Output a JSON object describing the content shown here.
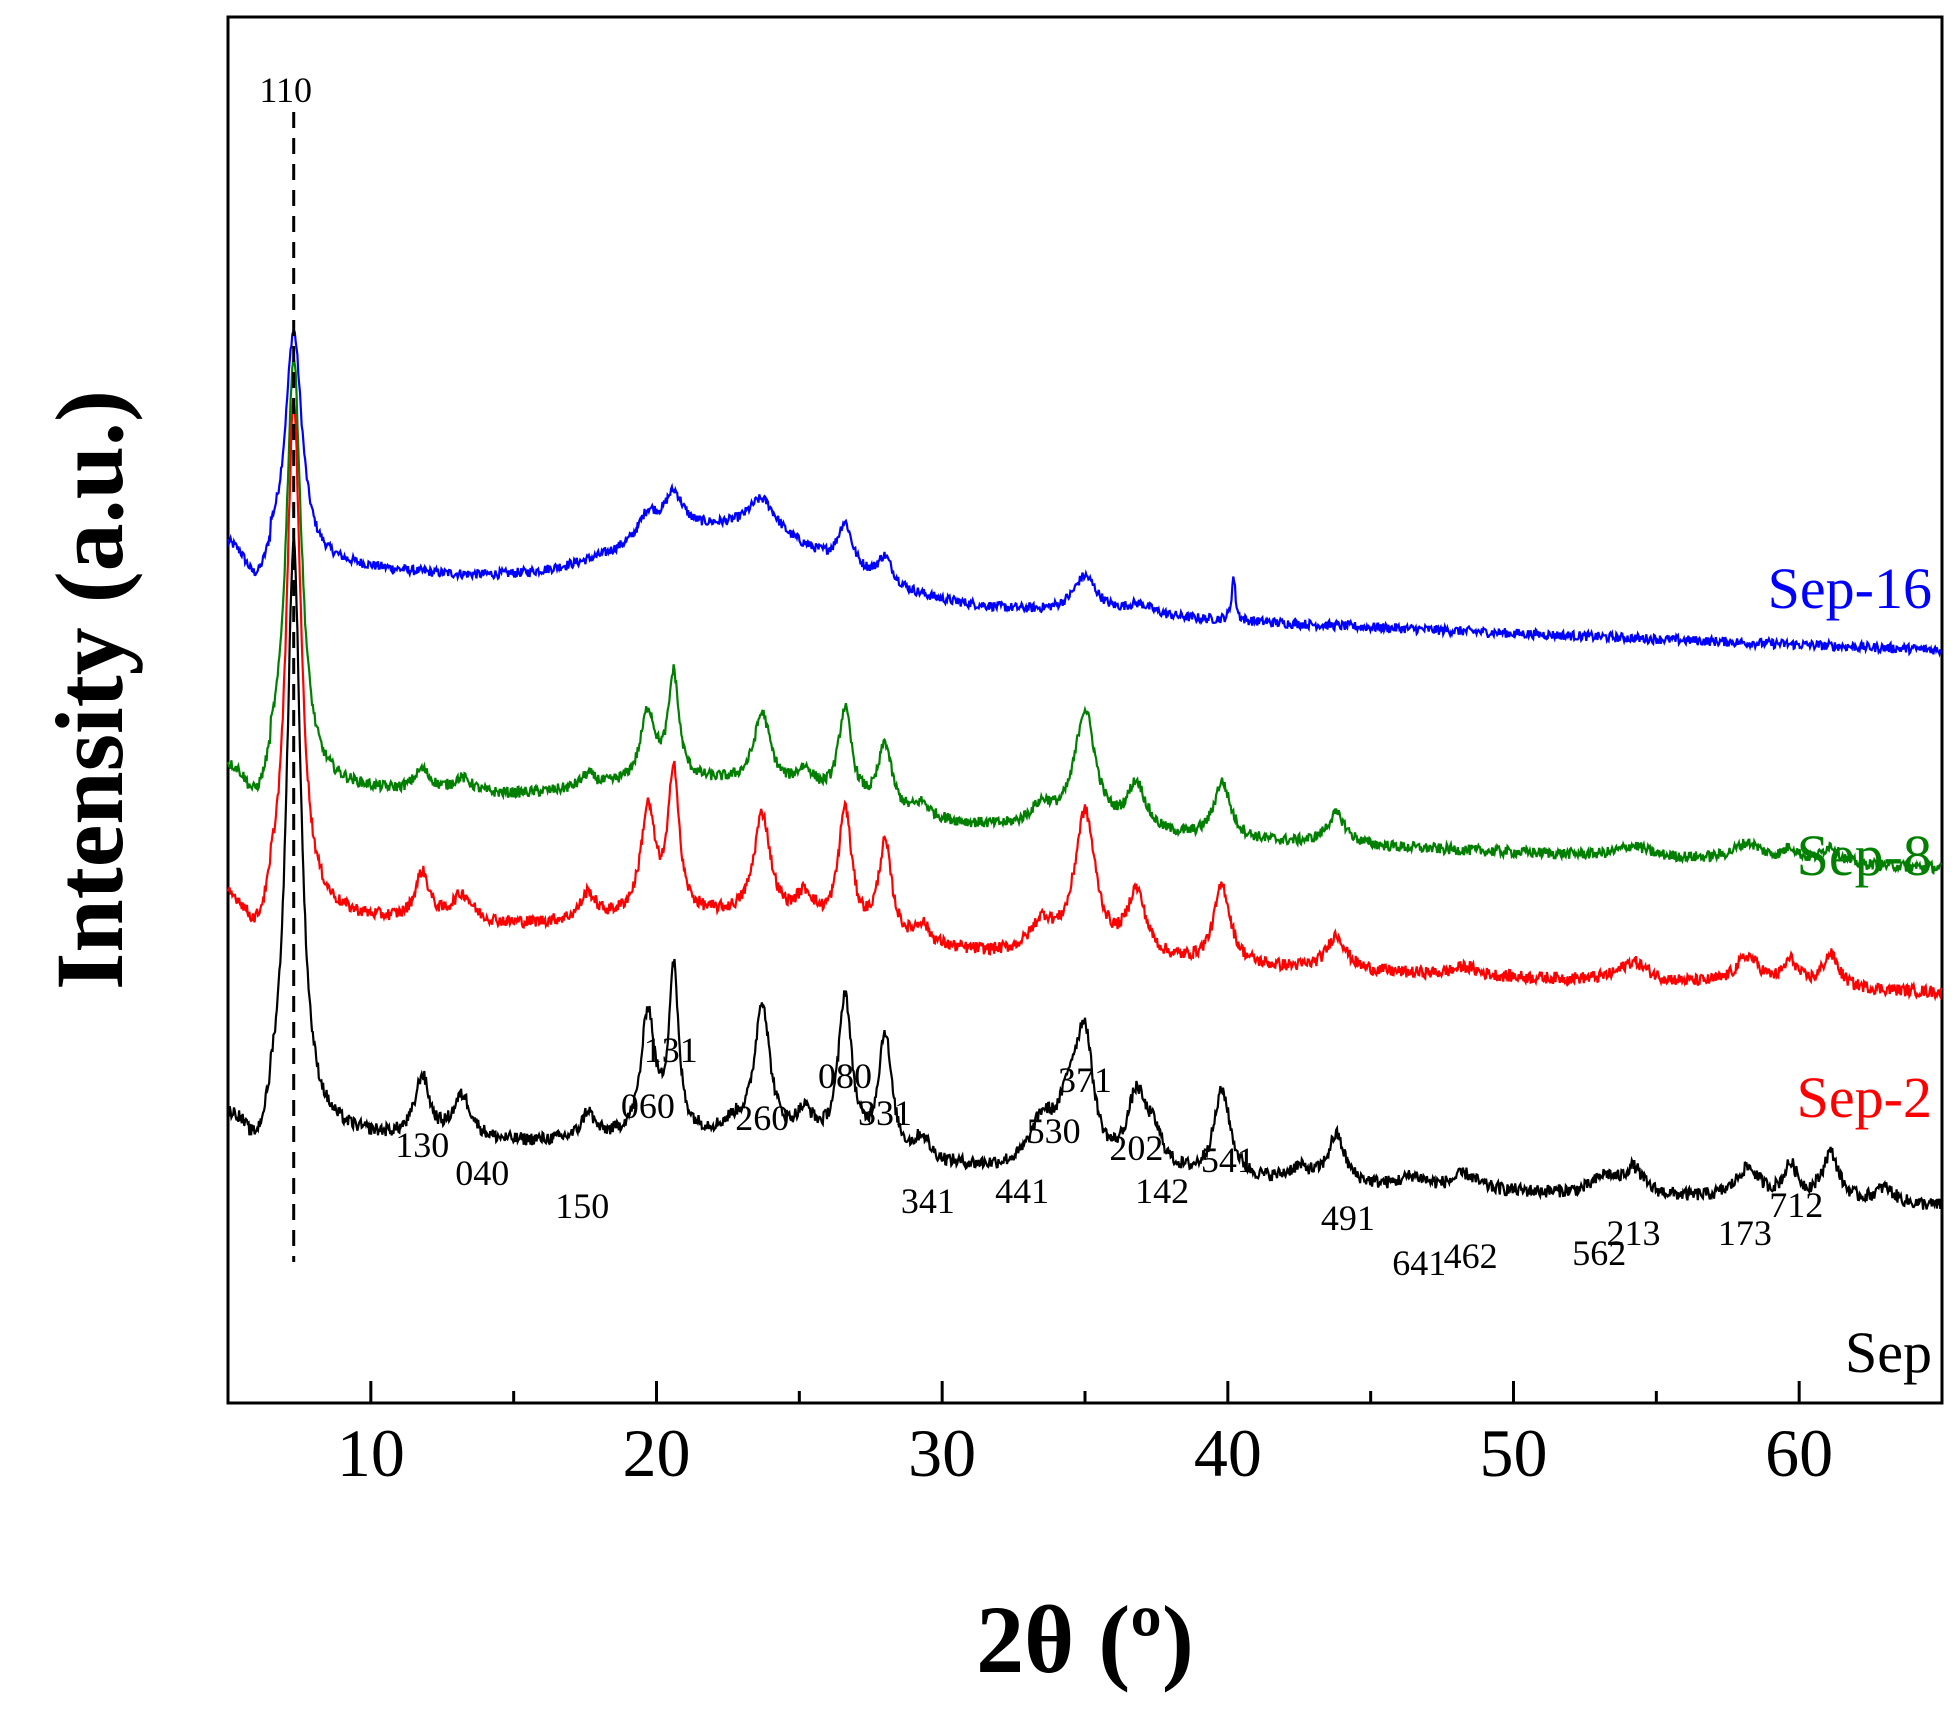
{
  "chart_data": {
    "type": "line",
    "title": "",
    "xlabel": "2θ (º)",
    "ylabel": "Intensity (a.u.)",
    "xlim": [
      5,
      65
    ],
    "xticks": [
      10,
      20,
      30,
      40,
      50,
      60
    ],
    "grid": false,
    "legend": "series labels at right end of each trace",
    "series": [
      {
        "name": "Sep-16",
        "color": "#0000ff",
        "offset": 2.55,
        "peaks": [
          [
            7.3,
            1.05,
            0.35
          ],
          [
            19.7,
            0.12,
            0.4
          ],
          [
            20.6,
            0.18,
            0.4
          ],
          [
            23.7,
            0.16,
            0.6
          ],
          [
            26.6,
            0.2,
            0.3
          ],
          [
            28.0,
            0.12,
            0.3
          ],
          [
            35.0,
            0.17,
            0.5
          ],
          [
            36.9,
            0.05,
            0.6
          ],
          [
            40.2,
            0.2,
            0.08
          ]
        ],
        "hump": [
          22.5,
          0.3,
          5.0
        ],
        "baseline_start": 0.48,
        "baseline_end": 0.0,
        "noise": 0.022
      },
      {
        "name": "Sep-8",
        "color": "#007f00",
        "offset": 1.55,
        "peaks": [
          [
            7.3,
            1.95,
            0.32
          ],
          [
            11.8,
            0.1,
            0.35
          ],
          [
            13.2,
            0.07,
            0.45
          ],
          [
            17.6,
            0.06,
            0.3
          ],
          [
            19.7,
            0.32,
            0.3
          ],
          [
            20.6,
            0.48,
            0.22
          ],
          [
            23.7,
            0.33,
            0.35
          ],
          [
            25.2,
            0.1,
            0.4
          ],
          [
            26.6,
            0.42,
            0.28
          ],
          [
            28.0,
            0.3,
            0.28
          ],
          [
            29.3,
            0.06,
            0.3
          ],
          [
            33.5,
            0.1,
            0.5
          ],
          [
            35.0,
            0.55,
            0.45
          ],
          [
            36.8,
            0.22,
            0.4
          ],
          [
            39.8,
            0.26,
            0.35
          ],
          [
            43.8,
            0.14,
            0.4
          ],
          [
            54.2,
            0.05,
            0.6
          ],
          [
            58.2,
            0.08,
            0.6
          ],
          [
            59.7,
            0.06,
            0.3
          ],
          [
            61.1,
            0.08,
            0.35
          ]
        ],
        "hump": [
          22.0,
          0.15,
          6.0
        ],
        "baseline_start": 0.45,
        "baseline_end": 0.0,
        "noise": 0.025
      },
      {
        "name": "Sep-2",
        "color": "#ff0000",
        "offset": 0.98,
        "peaks": [
          [
            7.3,
            2.35,
            0.3
          ],
          [
            11.8,
            0.22,
            0.3
          ],
          [
            13.2,
            0.13,
            0.45
          ],
          [
            17.6,
            0.12,
            0.3
          ],
          [
            19.7,
            0.48,
            0.3
          ],
          [
            20.6,
            0.66,
            0.22
          ],
          [
            23.7,
            0.48,
            0.35
          ],
          [
            25.2,
            0.13,
            0.4
          ],
          [
            26.6,
            0.56,
            0.28
          ],
          [
            28.0,
            0.43,
            0.28
          ],
          [
            29.3,
            0.09,
            0.3
          ],
          [
            33.5,
            0.14,
            0.5
          ],
          [
            35.0,
            0.66,
            0.45
          ],
          [
            36.8,
            0.3,
            0.4
          ],
          [
            39.8,
            0.36,
            0.35
          ],
          [
            43.8,
            0.16,
            0.4
          ],
          [
            48.3,
            0.04,
            0.5
          ],
          [
            54.2,
            0.09,
            0.6
          ],
          [
            58.2,
            0.13,
            0.5
          ],
          [
            59.7,
            0.11,
            0.3
          ],
          [
            61.1,
            0.15,
            0.35
          ]
        ],
        "hump": [
          22.0,
          0.12,
          6.0
        ],
        "baseline_start": 0.42,
        "baseline_end": 0.0,
        "noise": 0.028
      },
      {
        "name": "Sep",
        "color": "#000000",
        "offset": 0.0,
        "peaks": [
          [
            7.3,
            2.7,
            0.3
          ],
          [
            11.8,
            0.28,
            0.3
          ],
          [
            13.2,
            0.2,
            0.4
          ],
          [
            17.6,
            0.12,
            0.25
          ],
          [
            19.7,
            0.56,
            0.28
          ],
          [
            20.6,
            0.75,
            0.2
          ],
          [
            22.7,
            0.05,
            0.4
          ],
          [
            23.7,
            0.62,
            0.32
          ],
          [
            25.2,
            0.13,
            0.4
          ],
          [
            26.6,
            0.7,
            0.28
          ],
          [
            28.0,
            0.55,
            0.28
          ],
          [
            29.3,
            0.1,
            0.3
          ],
          [
            33.5,
            0.2,
            0.5
          ],
          [
            34.5,
            0.3,
            0.5
          ],
          [
            35.0,
            0.52,
            0.35
          ],
          [
            36.8,
            0.33,
            0.4
          ],
          [
            37.4,
            0.15,
            0.4
          ],
          [
            39.8,
            0.4,
            0.35
          ],
          [
            42.5,
            0.06,
            0.5
          ],
          [
            43.8,
            0.22,
            0.35
          ],
          [
            46.5,
            0.05,
            0.5
          ],
          [
            48.3,
            0.07,
            0.5
          ],
          [
            53.2,
            0.08,
            0.5
          ],
          [
            54.2,
            0.12,
            0.4
          ],
          [
            58.2,
            0.14,
            0.5
          ],
          [
            59.7,
            0.15,
            0.3
          ],
          [
            61.1,
            0.22,
            0.35
          ],
          [
            63.0,
            0.07,
            0.4
          ]
        ],
        "hump": [
          22.0,
          0.1,
          6.0
        ],
        "baseline_start": 0.4,
        "baseline_end": 0.0,
        "noise": 0.03
      }
    ],
    "reference_line": {
      "x": 7.3,
      "label": "110",
      "style": "dashed"
    },
    "peak_labels": [
      {
        "text": "130",
        "x": 11.8
      },
      {
        "text": "040",
        "x": 13.9
      },
      {
        "text": "150",
        "x": 17.4
      },
      {
        "text": "060",
        "x": 19.7
      },
      {
        "text": "131",
        "x": 20.5
      },
      {
        "text": "260",
        "x": 23.7
      },
      {
        "text": "080",
        "x": 26.6
      },
      {
        "text": "331",
        "x": 28.0
      },
      {
        "text": "341",
        "x": 29.5
      },
      {
        "text": "441",
        "x": 32.8
      },
      {
        "text": "530",
        "x": 33.9
      },
      {
        "text": "371",
        "x": 35.0
      },
      {
        "text": "202",
        "x": 36.8
      },
      {
        "text": "142",
        "x": 37.7
      },
      {
        "text": "541",
        "x": 40.0
      },
      {
        "text": "491",
        "x": 44.2
      },
      {
        "text": "641",
        "x": 46.7
      },
      {
        "text": "462",
        "x": 48.5
      },
      {
        "text": "562",
        "x": 53.0
      },
      {
        "text": "213",
        "x": 54.2
      },
      {
        "text": "173",
        "x": 58.1
      },
      {
        "text": "712",
        "x": 59.9
      }
    ]
  }
}
